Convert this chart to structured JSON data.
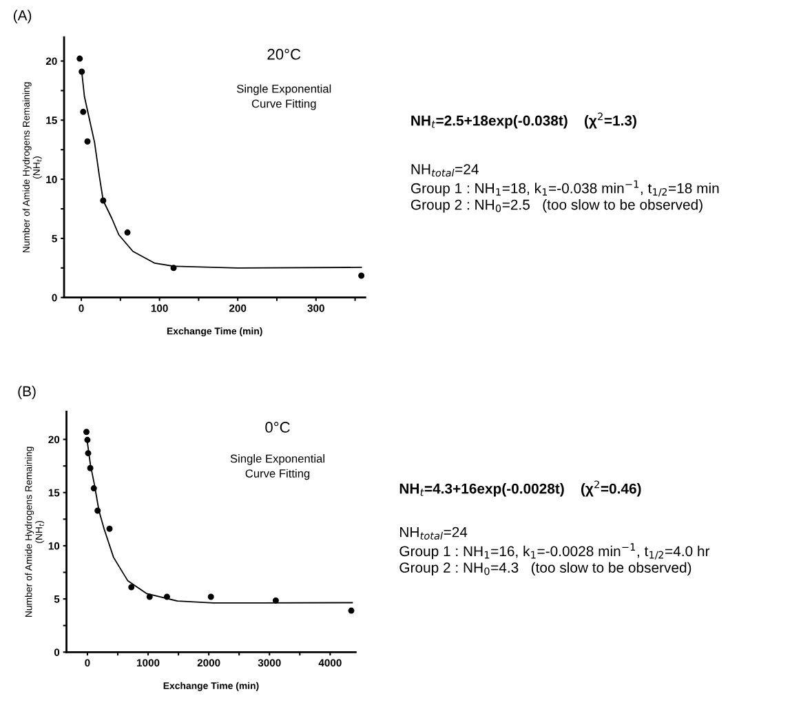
{
  "chart_data": [
    {
      "type": "scatter",
      "title": "20°C",
      "xlabel": "Exchange Time (min)",
      "ylabel": "Number of Amide Hydrogens Remaining\n(NH$_{t}$)",
      "annotations": [
        "(A)",
        "Single Exponential\nCurve Fitting",
        "NH$_{t}$=2.5+18exp(-0.038t)    (χ$^{2}$=1.3)",
        "NH$_{total}$=24\nGroup 1 : NH$_{1}$=18, k$_{1}$=-0.038 min$^{−1}$, t$_{1/2}$=18 min\nGroup 2 : NH$_{0}$=2.5   (too slow to be observed)"
      ],
      "xlim": [
        -22,
        363
      ],
      "ylim": [
        0,
        22
      ],
      "xticks": [
        0,
        {
          "value": 50,
          "label": null
        },
        100,
        {
          "value": 150,
          "label": null
        },
        200,
        {
          "value": 250,
          "label": null
        },
        300,
        {
          "value": 350,
          "label": null
        }
      ],
      "yticks": [
        0,
        {
          "value": 2.5,
          "label": null
        },
        5,
        {
          "value": 7.5,
          "label": null
        },
        10,
        {
          "value": 12.5,
          "label": null
        },
        15,
        {
          "value": 17.5,
          "label": null
        },
        20
      ],
      "grid": false,
      "legend": false,
      "series": [
        {
          "color": "#000000",
          "marker": "circle",
          "x": [
            -2,
            0.6,
            2.4,
            7.9,
            28,
            59,
            118,
            358
          ],
          "values": [
            20.2,
            19.1,
            15.7,
            13.2,
            8.2,
            5.5,
            2.5,
            1.85
          ]
        },
        {
          "type": "line",
          "color": "#000000",
          "marker": "none",
          "line_style": "solid",
          "x": [
            0.6,
            4,
            11,
            17,
            23,
            28,
            39,
            48,
            66,
            94,
            118,
            200,
            358
          ],
          "values": [
            19.1,
            17.0,
            14.9,
            13.1,
            10.3,
            8.2,
            6.7,
            5.3,
            3.9,
            2.9,
            2.65,
            2.5,
            2.55
          ]
        }
      ]
    },
    {
      "type": "scatter",
      "title": "0°C",
      "xlabel": "Exchange Time (min)",
      "ylabel": "Number of Amide Hydrogens Remaining\n(NH$_{t}$)",
      "annotations": [
        "(B)",
        "Single Exponential\nCurve Fitting",
        "NH$_{t}$=4.3+16exp(-0.0028t)    (χ$^{2}$=0.46)",
        "NH$_{total}$=24\nGroup 1 : NH$_{1}$=16, k$_{1}$=-0.0028 min$^{−1}$, t$_{1/2}$=4.0 hr\nGroup 2 : NH$_{0}$=4.3   (too slow to be observed)"
      ],
      "xlim": [
        -345,
        4420
      ],
      "ylim": [
        0,
        22.6
      ],
      "xticks": [
        0,
        {
          "value": 500,
          "label": null
        },
        1000,
        {
          "value": 1500,
          "label": null
        },
        2000,
        {
          "value": 2500,
          "label": null
        },
        3000,
        {
          "value": 3500,
          "label": null
        },
        4000
      ],
      "yticks": [
        0,
        {
          "value": 2.5,
          "label": null
        },
        5,
        {
          "value": 7.5,
          "label": null
        },
        10,
        {
          "value": 12.5,
          "label": null
        },
        15,
        {
          "value": 17.5,
          "label": null
        },
        20
      ],
      "grid": false,
      "legend": false,
      "series": [
        {
          "color": "#000000",
          "marker": "circle",
          "x": [
            -16,
            0,
            12,
            47,
            106,
            168,
            364,
            724,
            1025,
            1311,
            2035,
            3104,
            4348
          ],
          "values": [
            20.7,
            19.95,
            18.7,
            17.3,
            15.4,
            13.3,
            11.6,
            6.1,
            5.2,
            5.2,
            5.2,
            4.85,
            3.9
          ]
        },
        {
          "type": "line",
          "color": "#000000",
          "marker": "none",
          "line_style": "solid",
          "x": [
            0,
            50,
            117,
            190,
            274,
            431,
            666,
            979,
            1487,
            2074,
            2857,
            4364
          ],
          "values": [
            19.7,
            17.6,
            15.7,
            13.3,
            11.6,
            8.9,
            6.7,
            5.5,
            4.8,
            4.63,
            4.63,
            4.65
          ]
        }
      ]
    }
  ]
}
